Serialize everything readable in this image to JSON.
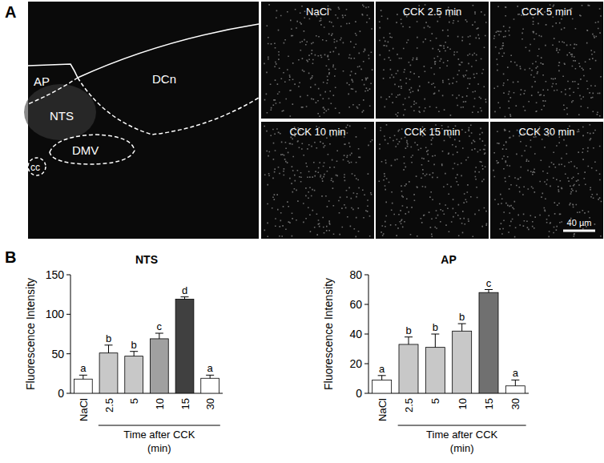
{
  "figure": {
    "panel_labels": [
      "A",
      "B"
    ],
    "micrograph": {
      "region_labels": [
        "AP",
        "DCn",
        "NTS",
        "DMV",
        "cc"
      ],
      "panel_titles": [
        "NaCl",
        "CCK 2.5 min",
        "CCK 5 min",
        "CCK 10 min",
        "CCK 15 min",
        "CCK 30 min"
      ],
      "scale_bar": "40 µm"
    }
  },
  "chart_data": [
    {
      "type": "bar",
      "title": "NTS",
      "ylabel": "Fluorescence Intensity",
      "xlabel": [
        "Time after CCK",
        "(min)"
      ],
      "categories": [
        "NaCl",
        "2.5",
        "5",
        "10",
        "15",
        "30"
      ],
      "values": [
        18,
        51,
        47,
        69,
        119,
        19
      ],
      "errors": [
        5,
        10,
        6,
        7,
        3,
        4
      ],
      "annotations": [
        "a",
        "b",
        "b",
        "c",
        "d",
        "a"
      ],
      "colors": [
        "#ffffff",
        "#c8c8c8",
        "#c8c8c8",
        "#a0a0a0",
        "#404040",
        "#ffffff"
      ],
      "ylim": [
        0,
        150
      ],
      "yticks": [
        0,
        50,
        100,
        150
      ]
    },
    {
      "type": "bar",
      "title": "AP",
      "ylabel": "Fluorescence Intensity",
      "xlabel": [
        "Time after CCK",
        "(min)"
      ],
      "categories": [
        "NaCl",
        "2.5",
        "5",
        "10",
        "15",
        "30"
      ],
      "values": [
        9,
        33,
        31,
        42,
        68,
        5
      ],
      "errors": [
        3,
        5,
        9,
        5,
        2,
        4
      ],
      "annotations": [
        "a",
        "b",
        "b",
        "b",
        "c",
        "a"
      ],
      "colors": [
        "#ffffff",
        "#c8c8c8",
        "#c8c8c8",
        "#c8c8c8",
        "#707070",
        "#ffffff"
      ],
      "ylim": [
        0,
        80
      ],
      "yticks": [
        0,
        20,
        40,
        60,
        80
      ]
    }
  ]
}
